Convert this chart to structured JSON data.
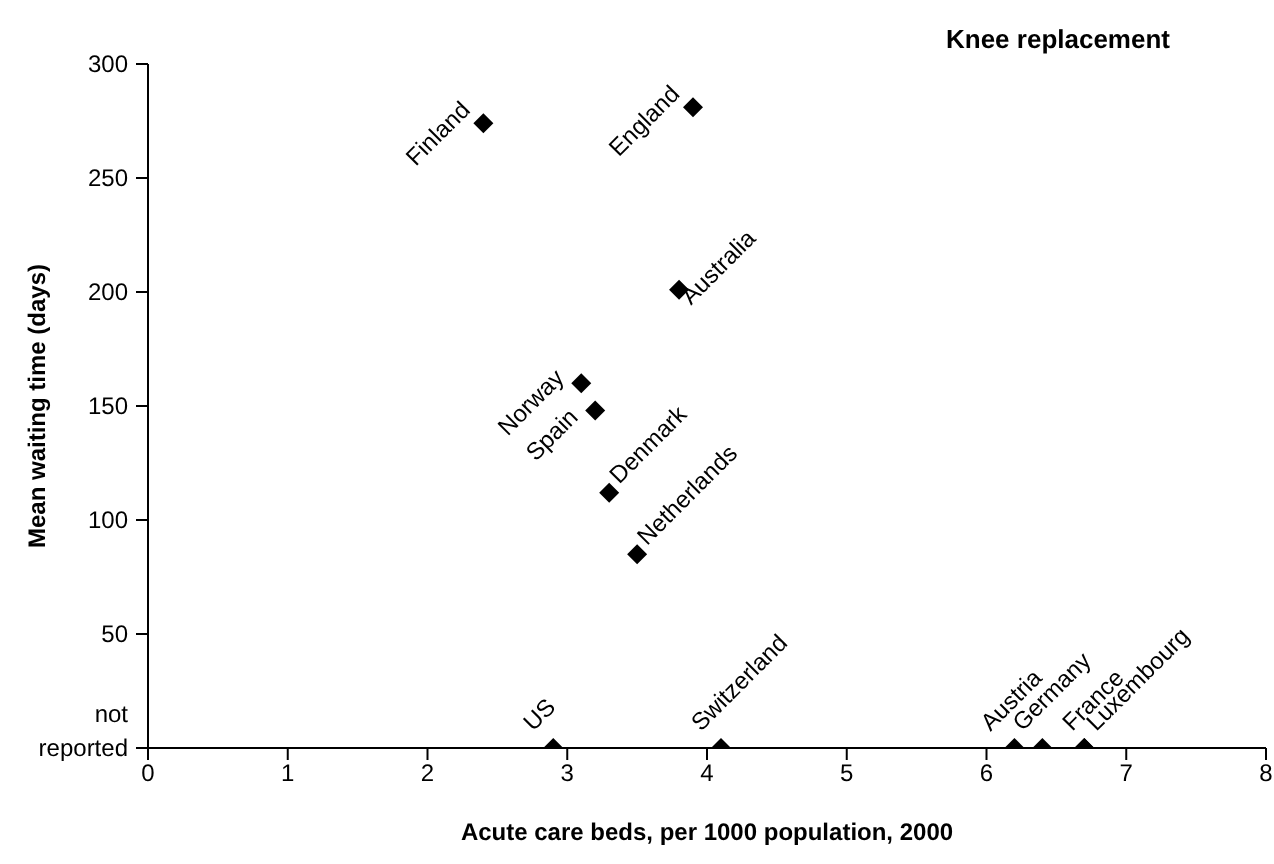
{
  "chart_data": {
    "type": "scatter",
    "title": "Knee replacement",
    "xlabel": "Acute care beds, per 1000 population, 2000",
    "ylabel": "Mean waiting time (days)",
    "series": [
      {
        "color": "#000000",
        "x": [
          2.4,
          3.9,
          3.8,
          3.1,
          3.2,
          3.3,
          3.5,
          2.9,
          4.1,
          6.2,
          6.4,
          6.7,
          6.7
        ],
        "values": [
          274,
          281,
          201,
          160,
          148,
          112,
          85,
          0,
          0,
          0,
          0,
          0,
          0
        ]
      }
    ],
    "marker": "diamond",
    "grid": false,
    "legend": false,
    "xlim": [
      0,
      8
    ],
    "xticks": [
      0,
      1,
      2,
      3,
      4,
      5,
      6,
      7,
      8
    ],
    "ylim": [
      0,
      300
    ],
    "yticks": [
      {
        "value": 0,
        "label": "not reported"
      },
      50,
      100,
      150,
      200,
      250,
      300
    ],
    "annotations": [
      {
        "text": "Finland",
        "x": 2.4,
        "y": 274
      },
      {
        "text": "England",
        "x": 3.9,
        "y": 281
      },
      {
        "text": "Australia",
        "x": 3.8,
        "y": 201
      },
      {
        "text": "Norway",
        "x": 3.1,
        "y": 160
      },
      {
        "text": "Spain",
        "x": 3.2,
        "y": 148
      },
      {
        "text": "Denmark",
        "x": 3.3,
        "y": 112
      },
      {
        "text": "Netherlands",
        "x": 3.5,
        "y": 85
      },
      {
        "text": "US",
        "x": 2.9,
        "y": 0
      },
      {
        "text": "Switzerland",
        "x": 4.1,
        "y": 0
      },
      {
        "text": "Austria",
        "x": 6.2,
        "y": 0
      },
      {
        "text": "Germany",
        "x": 6.4,
        "y": 0
      },
      {
        "text": "France",
        "x": 6.7,
        "y": 0
      },
      {
        "text": "Luxembourg",
        "x": 6.7,
        "y": 0
      }
    ]
  }
}
